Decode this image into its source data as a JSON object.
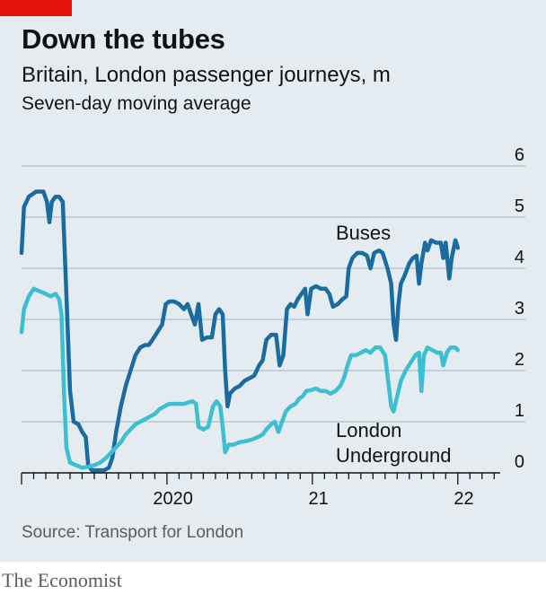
{
  "header": {
    "title": "Down the tubes",
    "subtitle": "Britain, London passenger journeys, m",
    "note": "Seven-day moving average"
  },
  "footer": {
    "source": "Source: Transport for London",
    "brand": "The Economist"
  },
  "colors": {
    "background": "#e4ecf1",
    "accent": "#e3120b",
    "buses": "#1a6ca0",
    "underground": "#3ebfd1",
    "grid": "#b7c6d0"
  },
  "chart_data": {
    "type": "line",
    "x_unit": "months since Jan 2019",
    "xlim": [
      0,
      39.5
    ],
    "ylim": [
      0,
      6
    ],
    "yticks": [
      0,
      1,
      2,
      3,
      4,
      5,
      6
    ],
    "ytick_labels": [
      "0",
      "1",
      "2",
      "3",
      "4",
      "5",
      "6"
    ],
    "year_labels": [
      {
        "label": "2020",
        "x": 12
      },
      {
        "label": "21",
        "x": 24
      },
      {
        "label": "22",
        "x": 36
      }
    ],
    "series": [
      {
        "name": "Buses",
        "color_key": "buses",
        "points": [
          [
            0,
            4.3
          ],
          [
            0.2,
            5.2
          ],
          [
            0.6,
            5.4
          ],
          [
            1.2,
            5.5
          ],
          [
            1.8,
            5.5
          ],
          [
            2.1,
            5.3
          ],
          [
            2.3,
            4.9
          ],
          [
            2.5,
            5.3
          ],
          [
            2.8,
            5.4
          ],
          [
            3.1,
            5.4
          ],
          [
            3.4,
            5.3
          ],
          [
            3.7,
            3.5
          ],
          [
            4.0,
            1.6
          ],
          [
            4.3,
            1.0
          ],
          [
            4.7,
            0.95
          ],
          [
            5.0,
            0.8
          ],
          [
            5.3,
            0.7
          ],
          [
            5.5,
            0.15
          ],
          [
            5.8,
            0.05
          ],
          [
            6.3,
            0.05
          ],
          [
            6.8,
            0.05
          ],
          [
            7.2,
            0.1
          ],
          [
            7.5,
            0.3
          ],
          [
            7.8,
            0.8
          ],
          [
            8.2,
            1.3
          ],
          [
            8.6,
            1.7
          ],
          [
            9.0,
            2.0
          ],
          [
            9.4,
            2.3
          ],
          [
            9.8,
            2.45
          ],
          [
            10.2,
            2.5
          ],
          [
            10.5,
            2.5
          ],
          [
            10.8,
            2.6
          ],
          [
            11.2,
            2.75
          ],
          [
            11.6,
            2.9
          ],
          [
            11.9,
            3.3
          ],
          [
            12.2,
            3.35
          ],
          [
            12.6,
            3.35
          ],
          [
            13.0,
            3.3
          ],
          [
            13.4,
            3.2
          ],
          [
            13.7,
            3.3
          ],
          [
            14.0,
            3.1
          ],
          [
            14.3,
            2.9
          ],
          [
            14.6,
            3.3
          ],
          [
            14.9,
            2.6
          ],
          [
            15.3,
            2.65
          ],
          [
            15.7,
            2.65
          ],
          [
            16.0,
            3.1
          ],
          [
            16.3,
            3.2
          ],
          [
            16.6,
            3.1
          ],
          [
            16.8,
            2.0
          ],
          [
            17.0,
            1.3
          ],
          [
            17.2,
            1.55
          ],
          [
            17.6,
            1.65
          ],
          [
            18.0,
            1.7
          ],
          [
            18.4,
            1.8
          ],
          [
            18.8,
            1.85
          ],
          [
            19.2,
            1.9
          ],
          [
            19.6,
            2.1
          ],
          [
            19.9,
            2.2
          ],
          [
            20.2,
            2.6
          ],
          [
            20.6,
            2.7
          ],
          [
            21.0,
            2.7
          ],
          [
            21.3,
            2.1
          ],
          [
            21.6,
            2.3
          ],
          [
            21.9,
            3.2
          ],
          [
            22.2,
            3.3
          ],
          [
            22.5,
            3.25
          ],
          [
            22.8,
            3.4
          ],
          [
            23.1,
            3.5
          ],
          [
            23.4,
            3.6
          ],
          [
            23.6,
            3.1
          ],
          [
            23.9,
            3.6
          ],
          [
            24.3,
            3.65
          ],
          [
            24.7,
            3.6
          ],
          [
            25.1,
            3.6
          ],
          [
            25.4,
            3.5
          ],
          [
            25.7,
            3.25
          ],
          [
            26.1,
            3.3
          ],
          [
            26.5,
            3.4
          ],
          [
            26.8,
            3.45
          ],
          [
            27.0,
            4.0
          ],
          [
            27.3,
            4.2
          ],
          [
            27.7,
            4.3
          ],
          [
            28.1,
            4.3
          ],
          [
            28.5,
            4.25
          ],
          [
            28.8,
            4.0
          ],
          [
            29.1,
            4.3
          ],
          [
            29.5,
            4.35
          ],
          [
            29.8,
            4.3
          ],
          [
            30.2,
            4.0
          ],
          [
            30.5,
            3.7
          ],
          [
            30.7,
            2.9
          ],
          [
            30.9,
            2.6
          ],
          [
            31.1,
            3.3
          ],
          [
            31.3,
            3.7
          ],
          [
            31.6,
            3.85
          ],
          [
            32.0,
            4.1
          ],
          [
            32.3,
            4.2
          ],
          [
            32.6,
            4.25
          ],
          [
            32.8,
            3.7
          ],
          [
            33.0,
            4.1
          ],
          [
            33.3,
            4.5
          ],
          [
            33.5,
            4.35
          ],
          [
            33.8,
            4.55
          ],
          [
            34.2,
            4.5
          ],
          [
            34.6,
            4.5
          ],
          [
            34.8,
            4.2
          ],
          [
            35.0,
            4.5
          ],
          [
            35.3,
            3.8
          ],
          [
            35.5,
            4.2
          ],
          [
            35.8,
            4.55
          ],
          [
            36.0,
            4.4
          ]
        ]
      },
      {
        "name": "London Underground",
        "color_key": "underground",
        "points": [
          [
            0,
            2.75
          ],
          [
            0.2,
            3.2
          ],
          [
            0.6,
            3.45
          ],
          [
            1.0,
            3.6
          ],
          [
            1.5,
            3.55
          ],
          [
            2.0,
            3.5
          ],
          [
            2.4,
            3.45
          ],
          [
            2.8,
            3.5
          ],
          [
            3.1,
            3.4
          ],
          [
            3.3,
            3.1
          ],
          [
            3.5,
            1.6
          ],
          [
            3.7,
            0.5
          ],
          [
            4.0,
            0.2
          ],
          [
            4.5,
            0.15
          ],
          [
            5.0,
            0.1
          ],
          [
            5.5,
            0.12
          ],
          [
            6.0,
            0.15
          ],
          [
            6.5,
            0.2
          ],
          [
            7.0,
            0.3
          ],
          [
            7.4,
            0.4
          ],
          [
            7.8,
            0.5
          ],
          [
            8.2,
            0.6
          ],
          [
            8.6,
            0.75
          ],
          [
            9.0,
            0.85
          ],
          [
            9.4,
            0.95
          ],
          [
            9.8,
            1.0
          ],
          [
            10.2,
            1.05
          ],
          [
            10.6,
            1.1
          ],
          [
            11.0,
            1.15
          ],
          [
            11.4,
            1.25
          ],
          [
            11.8,
            1.3
          ],
          [
            12.2,
            1.35
          ],
          [
            12.6,
            1.35
          ],
          [
            13.0,
            1.35
          ],
          [
            13.4,
            1.35
          ],
          [
            13.8,
            1.38
          ],
          [
            14.1,
            1.4
          ],
          [
            14.4,
            1.35
          ],
          [
            14.6,
            0.9
          ],
          [
            15.0,
            0.85
          ],
          [
            15.4,
            0.9
          ],
          [
            15.8,
            1.3
          ],
          [
            16.1,
            1.4
          ],
          [
            16.4,
            1.3
          ],
          [
            16.6,
            0.9
          ],
          [
            16.8,
            0.4
          ],
          [
            17.1,
            0.55
          ],
          [
            17.5,
            0.55
          ],
          [
            18.0,
            0.6
          ],
          [
            18.5,
            0.62
          ],
          [
            19.0,
            0.65
          ],
          [
            19.5,
            0.7
          ],
          [
            19.9,
            0.75
          ],
          [
            20.2,
            0.85
          ],
          [
            20.6,
            0.95
          ],
          [
            20.9,
            1.0
          ],
          [
            21.2,
            0.8
          ],
          [
            21.5,
            1.0
          ],
          [
            21.8,
            1.2
          ],
          [
            22.2,
            1.3
          ],
          [
            22.6,
            1.35
          ],
          [
            22.9,
            1.45
          ],
          [
            23.2,
            1.5
          ],
          [
            23.5,
            1.6
          ],
          [
            23.9,
            1.62
          ],
          [
            24.3,
            1.65
          ],
          [
            24.7,
            1.6
          ],
          [
            25.1,
            1.6
          ],
          [
            25.5,
            1.55
          ],
          [
            25.9,
            1.6
          ],
          [
            26.3,
            1.7
          ],
          [
            26.6,
            1.85
          ],
          [
            26.9,
            2.1
          ],
          [
            27.2,
            2.3
          ],
          [
            27.6,
            2.3
          ],
          [
            28.0,
            2.35
          ],
          [
            28.4,
            2.4
          ],
          [
            28.8,
            2.35
          ],
          [
            29.2,
            2.45
          ],
          [
            29.6,
            2.45
          ],
          [
            30.0,
            2.3
          ],
          [
            30.3,
            1.7
          ],
          [
            30.5,
            1.3
          ],
          [
            30.7,
            1.2
          ],
          [
            31.0,
            1.5
          ],
          [
            31.3,
            1.8
          ],
          [
            31.7,
            2.0
          ],
          [
            32.1,
            2.15
          ],
          [
            32.5,
            2.3
          ],
          [
            32.8,
            2.35
          ],
          [
            33.0,
            1.6
          ],
          [
            33.2,
            2.3
          ],
          [
            33.5,
            2.45
          ],
          [
            33.9,
            2.4
          ],
          [
            34.3,
            2.35
          ],
          [
            34.6,
            2.35
          ],
          [
            34.8,
            2.1
          ],
          [
            35.1,
            2.35
          ],
          [
            35.4,
            2.45
          ],
          [
            35.8,
            2.45
          ],
          [
            36.0,
            2.4
          ]
        ]
      }
    ],
    "series_labels": {
      "buses": "Buses",
      "underground_line1": "London",
      "underground_line2": "Underground"
    }
  }
}
